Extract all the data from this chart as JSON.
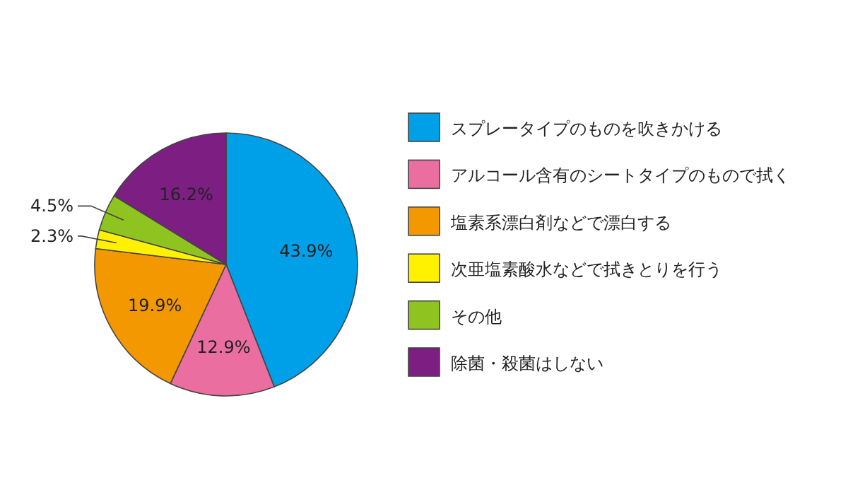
{
  "chart_data": {
    "type": "pie",
    "categories": [
      "スプレータイプのものを吹きかける",
      "アルコール含有のシートタイプのもので拭く",
      "塩素系漂白剤などで漂白する",
      "次亜塩素酸水などで拭きとりを行う",
      "その他",
      "除菌・殺菌はしない"
    ],
    "values": [
      43.9,
      12.9,
      19.9,
      2.3,
      4.5,
      16.2
    ],
    "value_labels": [
      "43.9%",
      "12.9%",
      "19.9%",
      "2.3%",
      "4.5%",
      "16.2%"
    ],
    "colors": [
      "#00a0e9",
      "#eb6ea0",
      "#f39800",
      "#fff100",
      "#8fc31f",
      "#7d1e82"
    ],
    "legend": "right"
  }
}
